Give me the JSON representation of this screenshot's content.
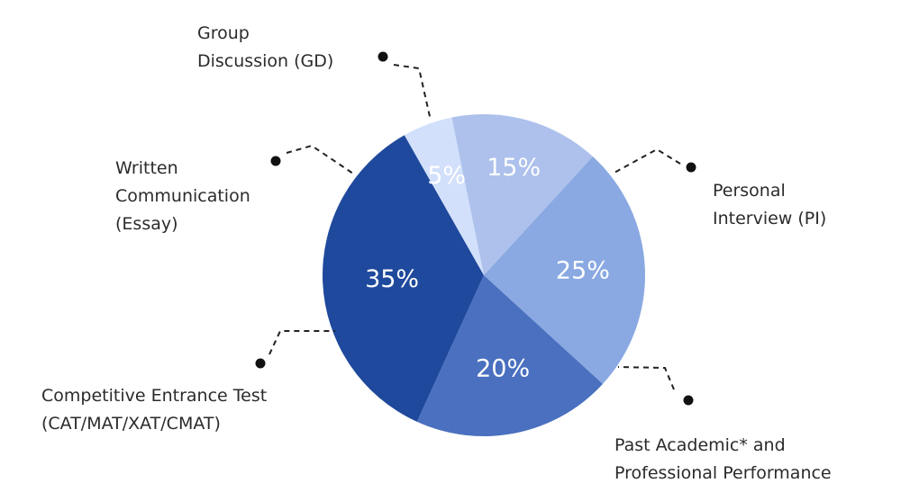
{
  "chart_data": {
    "type": "pie",
    "slices": [
      {
        "label": "Group Discussion (GD)",
        "label_lines": [
          "Group",
          "Discussion (GD)"
        ],
        "value": 15,
        "value_label": "15%",
        "color": "#adc1ec"
      },
      {
        "label": "Personal Interview (PI)",
        "label_lines": [
          "Personal",
          "Interview (PI)"
        ],
        "value": 25,
        "value_label": "25%",
        "color": "#8aa9e2"
      },
      {
        "label": "Past Academic* and Professional Performance",
        "label_lines": [
          "Past Academic* and",
          "Professional Performance"
        ],
        "value": 20,
        "value_label": "20%",
        "color": "#4a70bf"
      },
      {
        "label": "Competitive Entrance Test (CAT/MAT/XAT/CMAT)",
        "label_lines": [
          "Competitive Entrance Test",
          "(CAT/MAT/XAT/CMAT)"
        ],
        "value": 35,
        "value_label": "35%",
        "color": "#1f499c"
      },
      {
        "label": "Written Communication (Essay)",
        "label_lines": [
          "Written",
          "Communication",
          "(Essay)"
        ],
        "value": 5,
        "value_label": "5%",
        "color": "#d2e0fb"
      }
    ],
    "legend": "callouts"
  }
}
